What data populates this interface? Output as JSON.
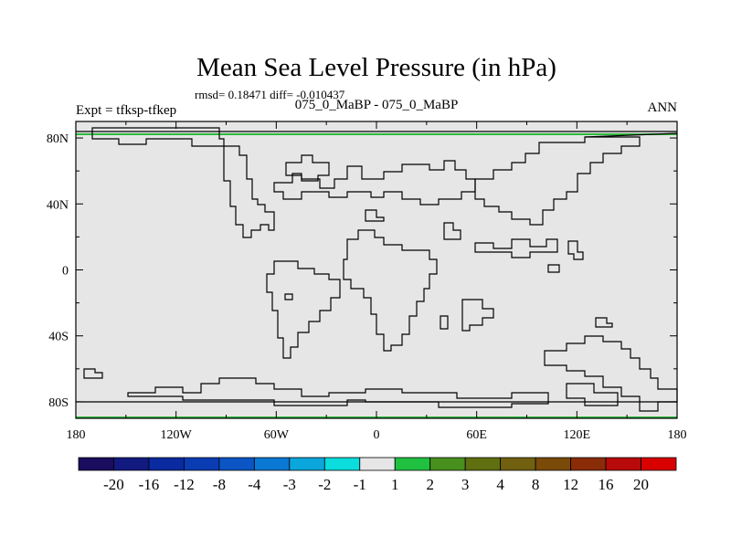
{
  "chart_data": {
    "type": "heatmap",
    "title": "Mean Sea Level Pressure (in hPa)",
    "stats_text": "rmsd= 0.18471 diff= -0.010437",
    "left_label": "Expt = tfksp-tfkep",
    "center_label": "075_0_MaBP - 075_0_MaBP",
    "right_label": "ANN",
    "x_ticks": [
      {
        "value": -180,
        "label": "180"
      },
      {
        "value": -120,
        "label": "120W"
      },
      {
        "value": -60,
        "label": "60W"
      },
      {
        "value": 0,
        "label": "0"
      },
      {
        "value": 60,
        "label": "60E"
      },
      {
        "value": 120,
        "label": "120E"
      },
      {
        "value": 180,
        "label": "180"
      }
    ],
    "y_ticks": [
      {
        "value": 80,
        "label": "80N"
      },
      {
        "value": 40,
        "label": "40N"
      },
      {
        "value": 0,
        "label": "0"
      },
      {
        "value": -40,
        "label": "40S"
      },
      {
        "value": -80,
        "label": "80S"
      }
    ],
    "xlim": [
      -180,
      180
    ],
    "ylim": [
      -90,
      90
    ],
    "field_value_range": "-1 to 1",
    "field_color": "#e6e6e6",
    "boundary_color": "#2db83d",
    "colorbar": {
      "colors": [
        "#1a0c5e",
        "#121a80",
        "#0a2aa0",
        "#0a3cb4",
        "#0b55c4",
        "#0b78d4",
        "#0ba6dc",
        "#0bdcdc",
        "#e6e6e6",
        "#20c040",
        "#48901e",
        "#606f10",
        "#706010",
        "#7a4a08",
        "#8a2c08",
        "#b80a0a",
        "#d80000"
      ],
      "labels": [
        "-20",
        "-16",
        "-12",
        "-8",
        "-4",
        "-3",
        "-2",
        "-1",
        "1",
        "2",
        "3",
        "4",
        "8",
        "12",
        "16",
        "20"
      ]
    }
  }
}
